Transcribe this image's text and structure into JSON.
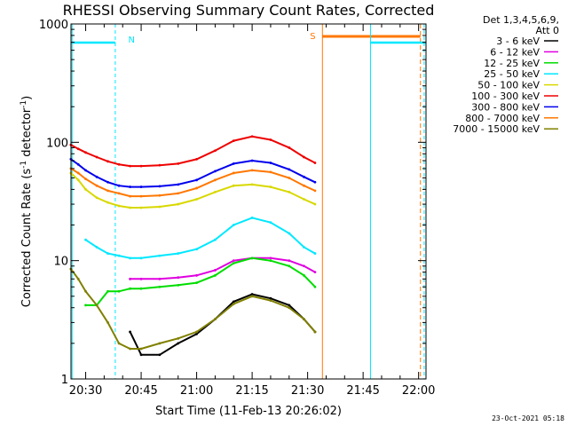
{
  "chart_data": {
    "type": "line",
    "title": "RHESSI Observing Summary Count Rates, Corrected",
    "xlabel": "Start Time (11-Feb-13 20:26:02)",
    "ylabel": "Corrected Count Rate (s",
    "ylabel_sup1": "-1",
    "ylabel_mid": " detector",
    "ylabel_sup2": "-1",
    "ylabel_end": ")",
    "y_scale": "log",
    "ylim": [
      1,
      1000
    ],
    "xlim": [
      "20:26:02",
      "22:02:00"
    ],
    "x_tick_labels": [
      "20:30",
      "20:45",
      "21:00",
      "21:15",
      "21:30",
      "21:45",
      "22:00"
    ],
    "y_tick_labels": [
      "1",
      "10",
      "100",
      "1000"
    ],
    "legend_header": [
      "Det 1,3,4,5,6,9,",
      "Att 0"
    ],
    "legend_placement": "right",
    "series": [
      {
        "name": "3 - 6 keV",
        "color": "#000000",
        "x": [
          "20:26",
          "20:28",
          "20:30",
          "20:33",
          "20:36",
          "20:39",
          "20:42",
          "20:45",
          "20:50",
          "20:55",
          "21:00",
          "21:05",
          "21:10",
          "21:15",
          "21:20",
          "21:25",
          "21:29",
          "21:32"
        ],
        "values": [
          null,
          null,
          null,
          null,
          null,
          null,
          2.5,
          1.6,
          1.6,
          2,
          2.4,
          3.2,
          4.5,
          5.2,
          4.8,
          4.2,
          3.2,
          2.5
        ]
      },
      {
        "name": "6 - 12 keV",
        "color": "#e000e0",
        "x": [
          "20:26",
          "20:28",
          "20:30",
          "20:33",
          "20:36",
          "20:39",
          "20:42",
          "20:45",
          "20:50",
          "20:55",
          "21:00",
          "21:05",
          "21:10",
          "21:15",
          "21:20",
          "21:25",
          "21:29",
          "21:32"
        ],
        "values": [
          null,
          null,
          null,
          null,
          null,
          null,
          7,
          7,
          7,
          7.2,
          7.5,
          8.3,
          10,
          10.5,
          10.5,
          10,
          9,
          8
        ]
      },
      {
        "name": "12 - 25 keV",
        "color": "#00dd00",
        "x": [
          "20:26",
          "20:28",
          "20:30",
          "20:33",
          "20:36",
          "20:39",
          "20:42",
          "20:45",
          "20:50",
          "20:55",
          "21:00",
          "21:05",
          "21:10",
          "21:15",
          "21:20",
          "21:25",
          "21:29",
          "21:32"
        ],
        "values": [
          null,
          null,
          4.2,
          4.2,
          5.5,
          5.5,
          5.8,
          5.8,
          6,
          6.2,
          6.5,
          7.5,
          9.5,
          10.5,
          10,
          9,
          7.5,
          6
        ]
      },
      {
        "name": "25 - 50 keV",
        "color": "#00e8ff",
        "x": [
          "20:26",
          "20:28",
          "20:30",
          "20:33",
          "20:36",
          "20:39",
          "20:42",
          "20:45",
          "20:50",
          "20:55",
          "21:00",
          "21:05",
          "21:10",
          "21:15",
          "21:20",
          "21:25",
          "21:29",
          "21:32"
        ],
        "values": [
          null,
          null,
          15,
          13,
          11.5,
          11,
          10.5,
          10.5,
          11,
          11.5,
          12.5,
          15,
          20,
          23,
          21,
          17,
          13,
          11.5
        ]
      },
      {
        "name": "50 - 100 keV",
        "color": "#d8d800",
        "x": [
          "20:26",
          "20:28",
          "20:30",
          "20:33",
          "20:36",
          "20:39",
          "20:42",
          "20:45",
          "20:50",
          "20:55",
          "21:00",
          "21:05",
          "21:10",
          "21:15",
          "21:20",
          "21:25",
          "21:29",
          "21:32"
        ],
        "values": [
          55,
          48,
          40,
          34,
          31,
          29,
          28,
          28,
          28.5,
          30,
          33,
          38,
          43,
          44,
          42,
          38,
          33,
          30
        ]
      },
      {
        "name": "100 - 300 keV",
        "color": "#ee0000",
        "x": [
          "20:26",
          "20:28",
          "20:30",
          "20:33",
          "20:36",
          "20:39",
          "20:42",
          "20:45",
          "20:50",
          "20:55",
          "21:00",
          "21:05",
          "21:10",
          "21:15",
          "21:20",
          "21:25",
          "21:29",
          "21:32"
        ],
        "values": [
          95,
          88,
          82,
          75,
          69,
          65,
          63,
          63,
          64,
          66,
          72,
          85,
          103,
          112,
          105,
          90,
          75,
          67
        ]
      },
      {
        "name": "300 - 800 keV",
        "color": "#0000ee",
        "x": [
          "20:26",
          "20:28",
          "20:30",
          "20:33",
          "20:36",
          "20:39",
          "20:42",
          "20:45",
          "20:50",
          "20:55",
          "21:00",
          "21:05",
          "21:10",
          "21:15",
          "21:20",
          "21:25",
          "21:29",
          "21:32"
        ],
        "values": [
          72,
          65,
          58,
          51,
          46,
          43,
          42,
          42,
          42.5,
          44,
          48,
          57,
          66,
          70,
          67,
          59,
          51,
          46
        ]
      },
      {
        "name": "800 - 7000 keV",
        "color": "#ff7700",
        "x": [
          "20:26",
          "20:28",
          "20:30",
          "20:33",
          "20:36",
          "20:39",
          "20:42",
          "20:45",
          "20:50",
          "20:55",
          "21:00",
          "21:05",
          "21:10",
          "21:15",
          "21:20",
          "21:25",
          "21:29",
          "21:32"
        ],
        "values": [
          60,
          55,
          49,
          43,
          39,
          37,
          35,
          35,
          35.5,
          37,
          41,
          48,
          55,
          58,
          56,
          50,
          43,
          39
        ]
      },
      {
        "name": "7000 - 15000 keV",
        "color": "#808000",
        "x": [
          "20:26",
          "20:28",
          "20:30",
          "20:33",
          "20:36",
          "20:39",
          "20:42",
          "20:45",
          "20:50",
          "20:55",
          "21:00",
          "21:05",
          "21:10",
          "21:15",
          "21:20",
          "21:25",
          "21:29",
          "21:32"
        ],
        "values": [
          8.5,
          7,
          5.5,
          4.2,
          3,
          2,
          1.8,
          1.8,
          2,
          2.2,
          2.5,
          3.2,
          4.3,
          5,
          4.6,
          4,
          3.2,
          2.5
        ]
      }
    ],
    "annotations": {
      "night_label": "N",
      "saa_label": "S",
      "footer_date": "23-Oct-2021 05:18"
    }
  }
}
